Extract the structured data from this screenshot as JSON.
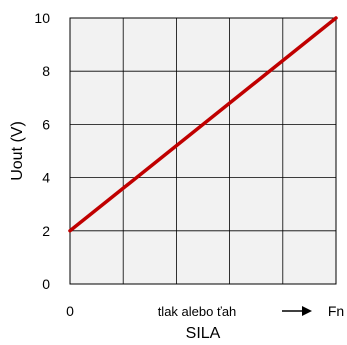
{
  "chart_data": {
    "type": "line",
    "ylabel": "Uout (V)",
    "xlabel": "SILA",
    "ylim": [
      0,
      10
    ],
    "yticks": [
      0,
      2,
      4,
      6,
      8,
      10
    ],
    "xlim": [
      0,
      1
    ],
    "x_tick_labels": {
      "start": "0",
      "end": "Fn"
    },
    "annotation": "tlak alebo ťah",
    "grid": true,
    "series": [
      {
        "x": [
          0,
          1
        ],
        "values": [
          2,
          10
        ],
        "color": "#c00000"
      }
    ],
    "colors": {
      "background": "#f2f2f2",
      "grid": "#000000",
      "line": "#c00000"
    }
  }
}
